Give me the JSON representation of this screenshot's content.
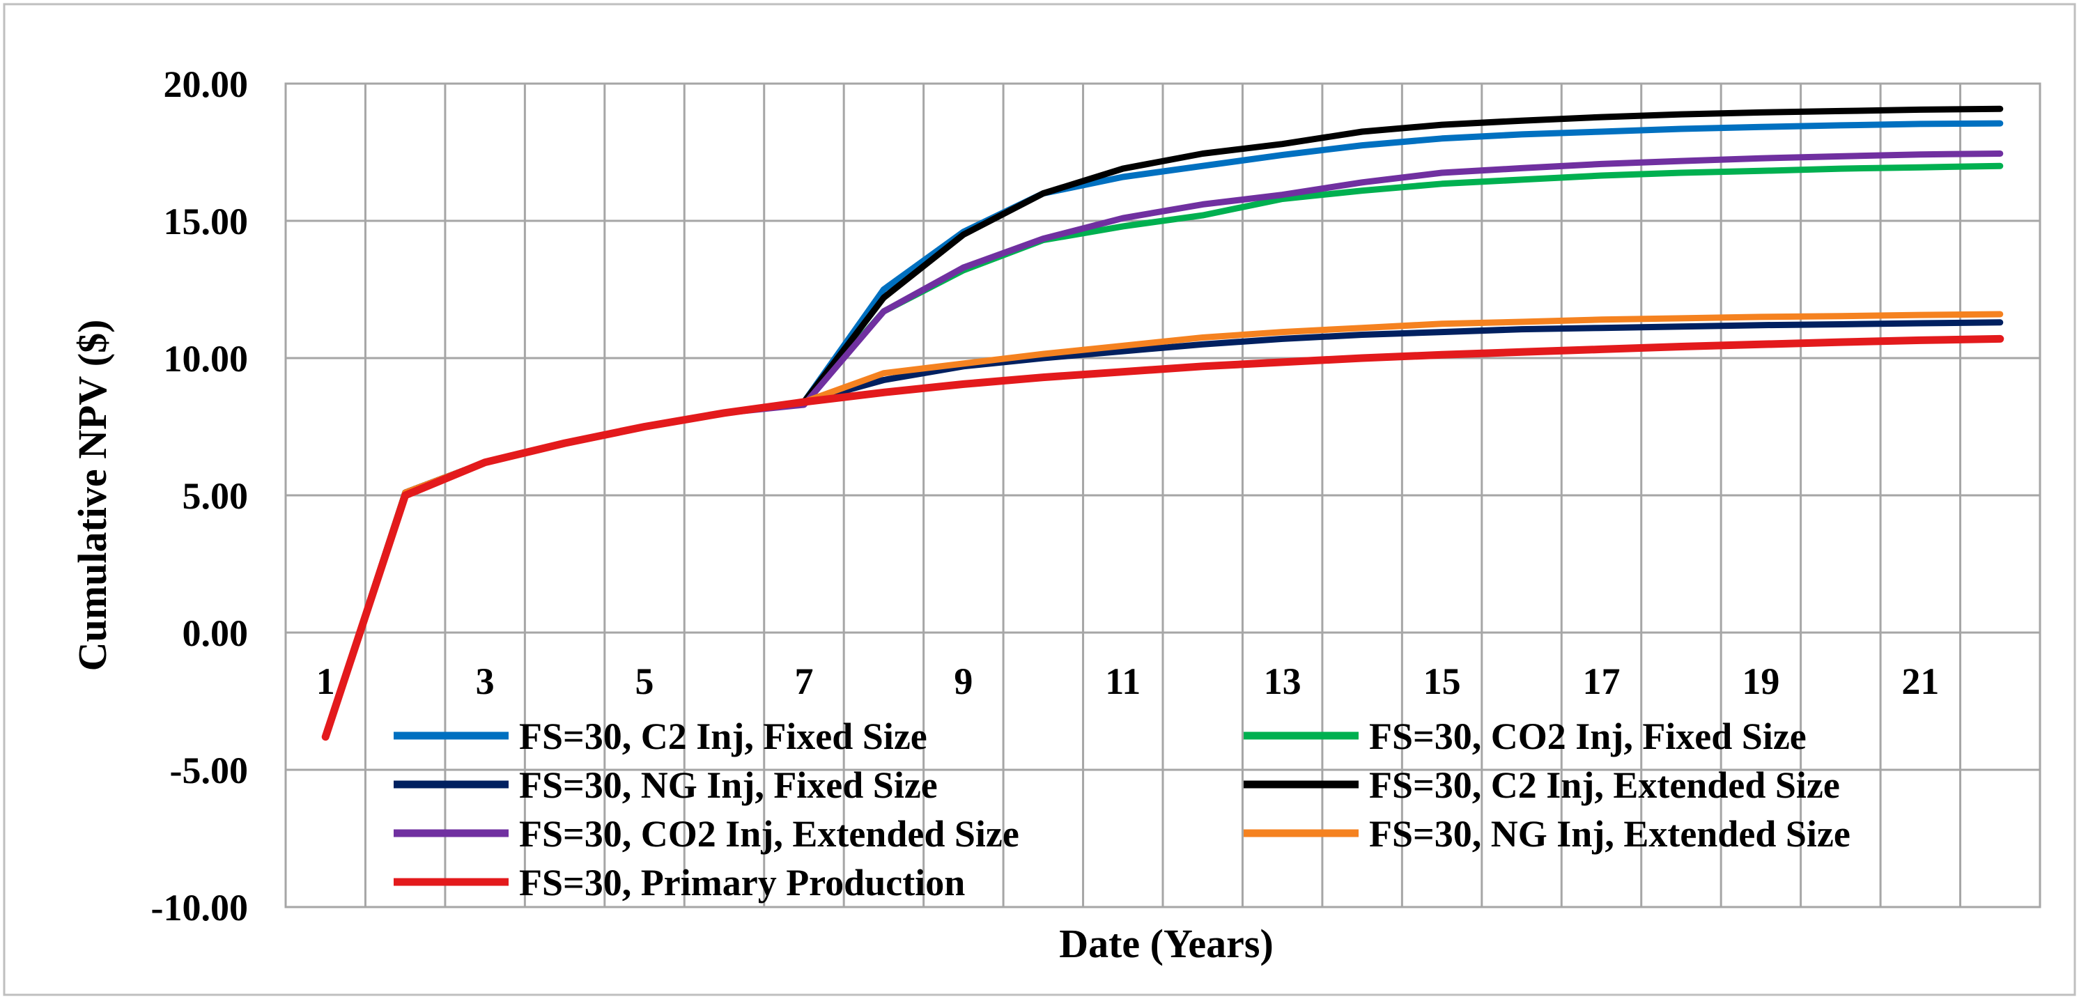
{
  "chart_data": {
    "type": "line",
    "title": "",
    "xlabel": "Date (Years)",
    "ylabel": "Cumulative NPV ($)",
    "ylim": [
      -10,
      20
    ],
    "xlim": [
      0.5,
      22.5
    ],
    "y_ticks": [
      "20.00",
      "15.00",
      "10.00",
      "5.00",
      "0.00",
      "-5.00",
      "-10.00"
    ],
    "y_tick_values": [
      20,
      15,
      10,
      5,
      0,
      -5,
      -10
    ],
    "x_tick_labels": [
      "1",
      "3",
      "5",
      "7",
      "9",
      "11",
      "13",
      "15",
      "17",
      "19",
      "21"
    ],
    "x_tick_values": [
      1,
      3,
      5,
      7,
      9,
      11,
      13,
      15,
      17,
      19,
      21
    ],
    "grid": true,
    "legend_placement": "bottom-inside",
    "x": [
      1,
      2,
      3,
      4,
      5,
      6,
      7,
      8,
      9,
      10,
      11,
      12,
      13,
      14,
      15,
      16,
      17,
      18,
      19,
      20,
      21,
      22
    ],
    "series": [
      {
        "name": "FS=30, C2 Inj, Fixed Size",
        "color": "#0070C0",
        "values": [
          -3.8,
          5.1,
          6.2,
          6.9,
          7.5,
          8.0,
          8.4,
          12.5,
          14.6,
          16.0,
          16.6,
          17.0,
          17.4,
          17.75,
          18.0,
          18.15,
          18.25,
          18.35,
          18.42,
          18.48,
          18.53,
          18.55
        ]
      },
      {
        "name": "FS=30, CO2 Inj, Fixed Size",
        "color": "#00B050",
        "values": [
          -3.8,
          5.1,
          6.2,
          6.9,
          7.5,
          8.0,
          8.4,
          11.7,
          13.2,
          14.3,
          14.8,
          15.2,
          15.8,
          16.1,
          16.35,
          16.5,
          16.65,
          16.75,
          16.82,
          16.9,
          16.95,
          17.0
        ]
      },
      {
        "name": "FS=30, NG Inj, Fixed Size",
        "color": "#002060",
        "values": [
          -3.8,
          5.1,
          6.2,
          6.9,
          7.5,
          8.0,
          8.4,
          9.2,
          9.7,
          10.0,
          10.25,
          10.5,
          10.7,
          10.85,
          10.95,
          11.05,
          11.1,
          11.15,
          11.2,
          11.23,
          11.27,
          11.3
        ]
      },
      {
        "name": "FS=30, C2 Inj, Extended Size",
        "color": "#000000",
        "values": [
          -3.8,
          5.1,
          6.2,
          6.9,
          7.5,
          8.0,
          8.4,
          12.2,
          14.5,
          16.0,
          16.9,
          17.45,
          17.8,
          18.25,
          18.5,
          18.65,
          18.78,
          18.88,
          18.95,
          19.0,
          19.05,
          19.08
        ]
      },
      {
        "name": "FS=30, CO2 Inj, Extended Size",
        "color": "#7030A0",
        "values": [
          -3.8,
          5.1,
          6.2,
          6.9,
          7.5,
          8.0,
          8.3,
          11.7,
          13.3,
          14.35,
          15.1,
          15.6,
          15.95,
          16.4,
          16.75,
          16.92,
          17.07,
          17.18,
          17.28,
          17.35,
          17.42,
          17.45
        ]
      },
      {
        "name": "FS=30, NG Inj, Extended Size",
        "color": "#F58220",
        "values": [
          -3.8,
          5.1,
          6.2,
          6.9,
          7.5,
          8.0,
          8.4,
          9.45,
          9.8,
          10.15,
          10.45,
          10.75,
          10.95,
          11.1,
          11.25,
          11.32,
          11.4,
          11.45,
          11.5,
          11.53,
          11.57,
          11.6
        ]
      },
      {
        "name": "FS=30, Primary Production",
        "color": "#E31A1C",
        "values": [
          -3.8,
          5.0,
          6.2,
          6.9,
          7.5,
          8.0,
          8.4,
          8.75,
          9.05,
          9.3,
          9.5,
          9.7,
          9.85,
          10.0,
          10.12,
          10.22,
          10.32,
          10.42,
          10.5,
          10.58,
          10.65,
          10.7
        ]
      }
    ]
  }
}
